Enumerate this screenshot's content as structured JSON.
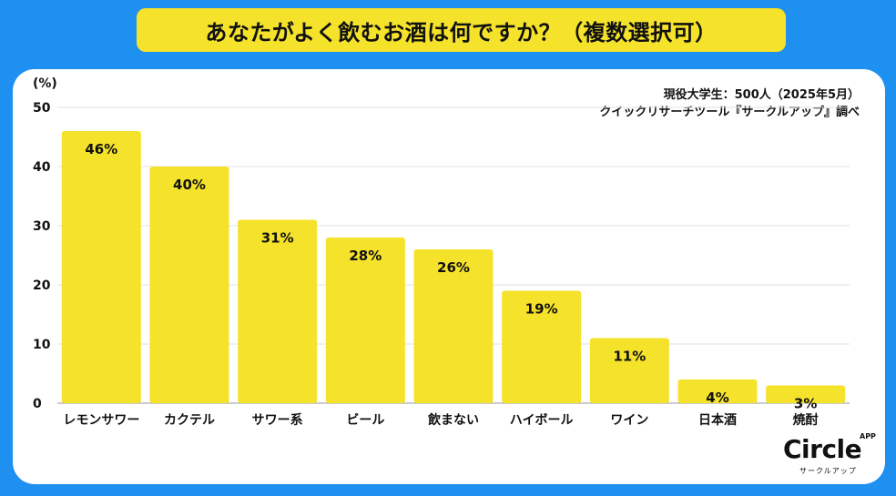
{
  "title": "あなたがよく飲むお酒は何ですか？（複数選択可）",
  "source": {
    "line1": "現役大学生：500人（2025年5月）",
    "line2": "クイックリサーチツール『サークルアップ』調べ"
  },
  "logo": {
    "name": "Circle",
    "badge": "APP",
    "sub": "サークルアップ"
  },
  "colors": {
    "background": "#1e90f0",
    "bar": "#f5e22a",
    "banner": "#f5e22a",
    "card": "#ffffff"
  },
  "chart_data": {
    "type": "bar",
    "categories": [
      "レモンサワー",
      "カクテル",
      "サワー系",
      "ビール",
      "飲まない",
      "ハイボール",
      "ワイン",
      "日本酒",
      "焼酎"
    ],
    "values": [
      46,
      40,
      31,
      28,
      26,
      19,
      11,
      4,
      3
    ],
    "value_labels": [
      "46%",
      "40%",
      "31%",
      "28%",
      "26%",
      "19%",
      "11%",
      "4%",
      "3%"
    ],
    "ylabel": "(%)",
    "ylim": [
      0,
      50
    ],
    "yticks": [
      0,
      10,
      20,
      30,
      40,
      50
    ],
    "grid": true,
    "legend": "none"
  }
}
